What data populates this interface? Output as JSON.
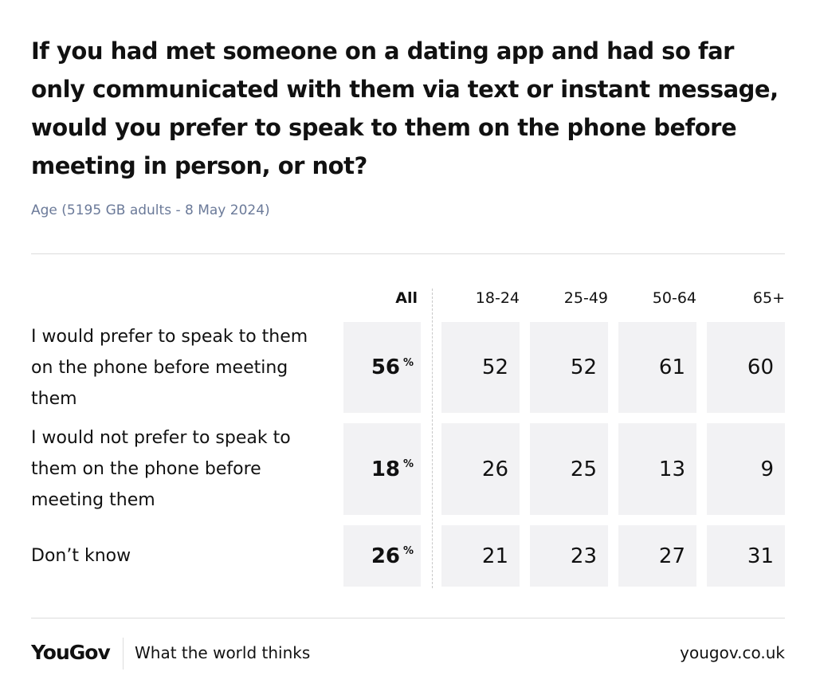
{
  "header": {
    "title": "If you had met someone on a dating app and had so far only communicated with them via text or instant message, would you prefer to speak to them on the phone before meeting in person, or not?",
    "subtitle": "Age (5195 GB adults - 8 May 2024)"
  },
  "table": {
    "columns": [
      "All",
      "18-24",
      "25-49",
      "50-64",
      "65+"
    ],
    "unit": "%",
    "rows": [
      {
        "label": "I would prefer to speak to them on the phone before meeting them",
        "values": [
          56,
          52,
          52,
          61,
          60
        ]
      },
      {
        "label": "I would not prefer to speak to them on the phone before meeting them",
        "values": [
          18,
          26,
          25,
          13,
          9
        ]
      },
      {
        "label": "Don’t know",
        "values": [
          26,
          21,
          23,
          27,
          31
        ]
      }
    ]
  },
  "footer": {
    "brand": "YouGov",
    "tagline": "What the world thinks",
    "url": "yougov.co.uk"
  }
}
